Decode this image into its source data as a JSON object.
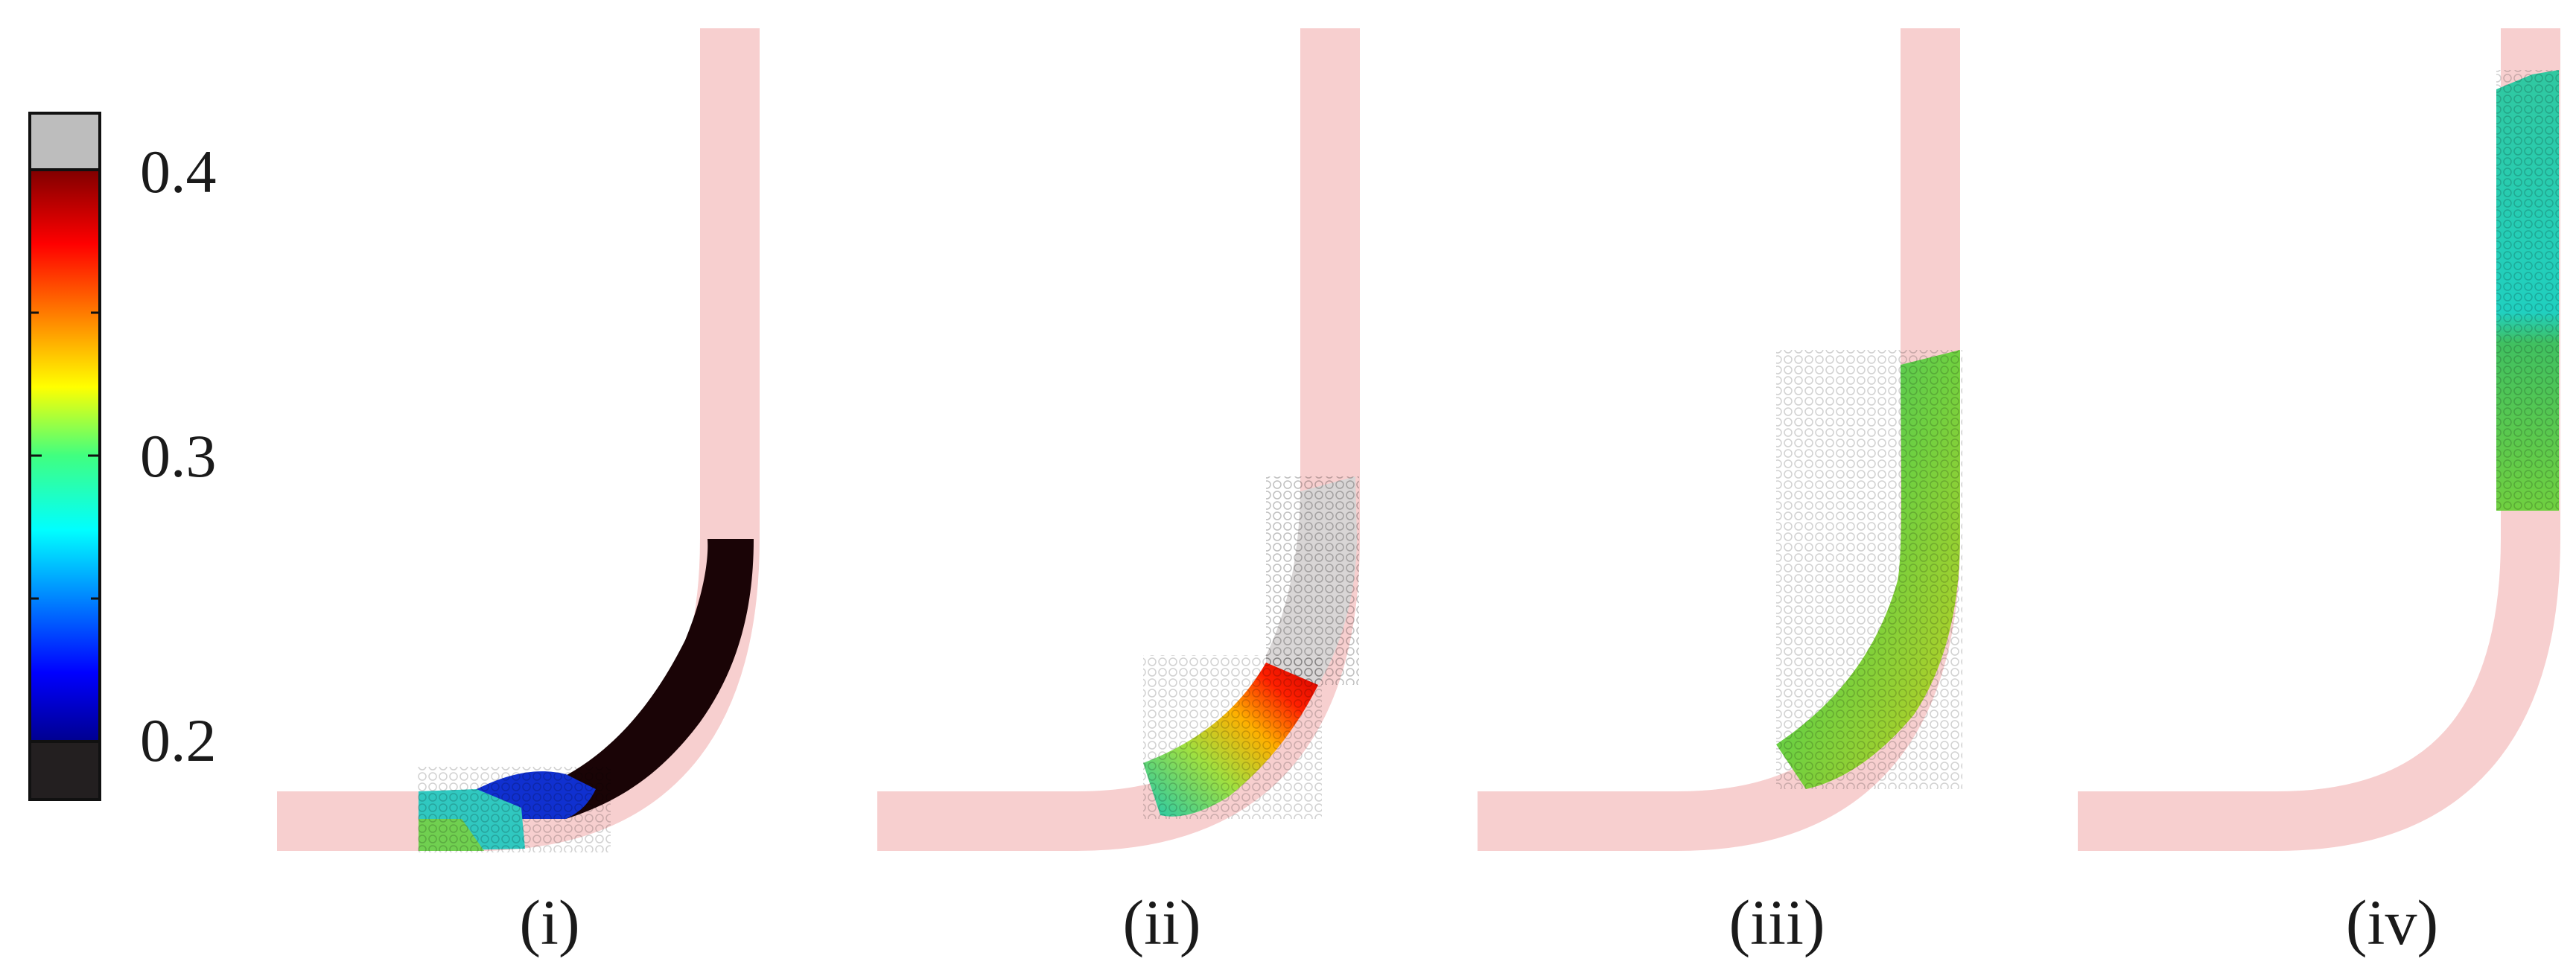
{
  "colorbar": {
    "ticks": [
      {
        "value": 0.4,
        "label": "0.4"
      },
      {
        "value": 0.3,
        "label": "0.3"
      },
      {
        "value": 0.2,
        "label": "0.2"
      }
    ],
    "range": [
      0.2,
      0.4
    ],
    "over_color": "#bdbdbd",
    "under_color": "#231f20",
    "colormap": "jet"
  },
  "colors": {
    "pipe": "#f7cfcf",
    "filled_dark": "#1a0406",
    "particles_white": "#d9d6d6"
  },
  "panels": [
    {
      "label": "(i)"
    },
    {
      "label": "(ii)"
    },
    {
      "label": "(iii)"
    },
    {
      "label": "(iv)"
    }
  ]
}
